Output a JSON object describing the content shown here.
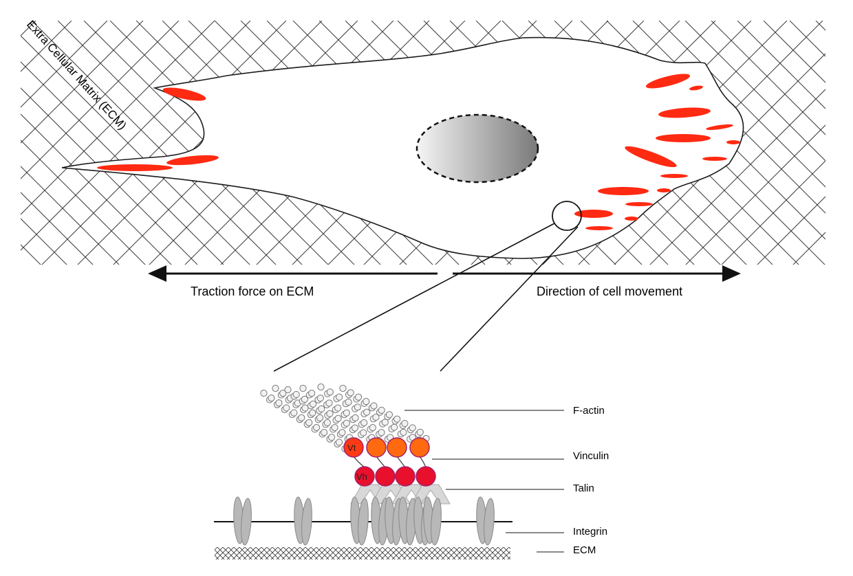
{
  "ecm_label": "Extra Cellular Matrix (ECM)",
  "arrows": {
    "left_label": "Traction force on ECM",
    "right_label": "Direction of cell movement"
  },
  "inset_labels": {
    "factin": "F-actin",
    "vinculin": "Vinculin",
    "talin": "Talin",
    "integrin": "Integrin",
    "ecm": "ECM"
  },
  "bead_labels": {
    "vt": "Vt",
    "vh": "Vh"
  },
  "colors": {
    "adhesion_red": "#ff2a12",
    "vinculin_tail": "#ff6a10",
    "vinculin_head": "#e8102c",
    "integrin_gray": "#b8b8b8",
    "talin_gray": "#d8d8d8"
  }
}
